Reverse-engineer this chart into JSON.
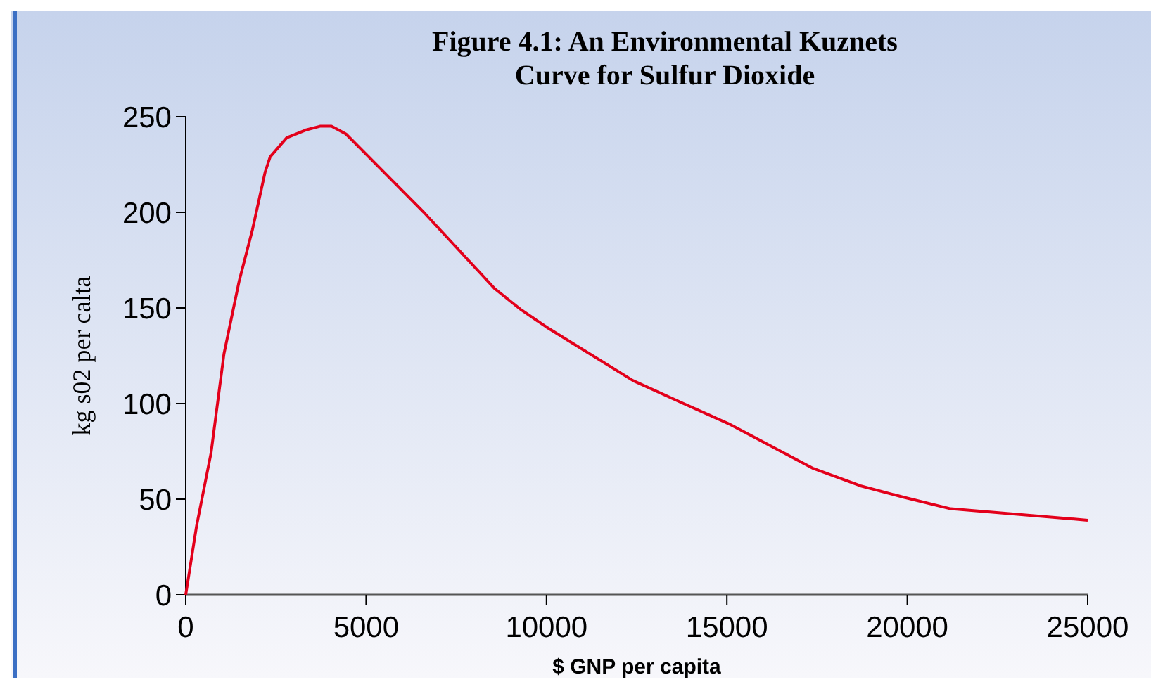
{
  "chart_data": {
    "type": "line",
    "title": "Figure 4.1: An Environmental Kuznets\nCurve for Sulfur Dioxide",
    "xlabel": "$ GNP per capita",
    "ylabel": "kg s02 per calta",
    "series": [
      {
        "color": "#e3001b",
        "x": [
          0,
          300,
          700,
          1060,
          1480,
          1850,
          2200,
          2340,
          2800,
          3320,
          3720,
          4040,
          4440,
          6600,
          8570,
          9300,
          10000,
          12400,
          13800,
          15100,
          17400,
          18700,
          19900,
          21200,
          25000
        ],
        "values": [
          0,
          36,
          74,
          126,
          164,
          191,
          221,
          229,
          239,
          243,
          245,
          245,
          241,
          200,
          160,
          149,
          140,
          112,
          100,
          89,
          66,
          57,
          51,
          45,
          39
        ]
      }
    ],
    "xlim": [
      0,
      25000
    ],
    "xticks": [
      0,
      5000,
      10000,
      15000,
      20000,
      25000
    ],
    "ylim": [
      0,
      250
    ],
    "yticks": [
      0,
      50,
      100,
      150,
      200,
      250
    ],
    "grid": false,
    "marker": "none",
    "line_style": "solid"
  }
}
